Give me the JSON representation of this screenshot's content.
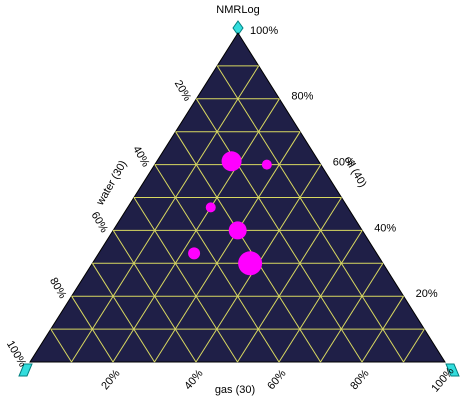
{
  "chart_data": {
    "type": "ternary",
    "title": "NMRLog",
    "axes": {
      "top": {
        "label": "oil (40)",
        "ticks": [
          {
            "value": 20,
            "label": "20%"
          },
          {
            "value": 40,
            "label": "40%"
          },
          {
            "value": 60,
            "label": "60%"
          },
          {
            "value": 80,
            "label": "80%"
          },
          {
            "value": 100,
            "label": "100%"
          }
        ]
      },
      "left": {
        "label": "water (30)",
        "ticks": [
          {
            "value": 20,
            "label": "20%"
          },
          {
            "value": 40,
            "label": "40%"
          },
          {
            "value": 60,
            "label": "60%"
          },
          {
            "value": 80,
            "label": "80%"
          },
          {
            "value": 100,
            "label": "100%"
          }
        ]
      },
      "right": {
        "label": "gas (30)",
        "ticks": [
          {
            "value": 20,
            "label": "20%"
          },
          {
            "value": 40,
            "label": "40%"
          },
          {
            "value": 60,
            "label": "60%"
          },
          {
            "value": 80,
            "label": "80%"
          },
          {
            "value": 100,
            "label": "100%"
          }
        ]
      }
    },
    "gridlines": [
      10,
      20,
      30,
      40,
      50,
      60,
      70,
      80,
      90
    ],
    "background": "#1f1f47",
    "grid_color": "#d8d860",
    "series": [
      {
        "color": "#ff00ff",
        "top": [
          61,
          60,
          47,
          40,
          33,
          30
        ],
        "right": [
          18,
          27,
          20,
          30,
          23,
          38
        ],
        "left": [
          21,
          13,
          33,
          30,
          44,
          32
        ],
        "sizes": [
          10,
          5,
          5,
          9,
          6,
          12
        ]
      }
    ]
  }
}
